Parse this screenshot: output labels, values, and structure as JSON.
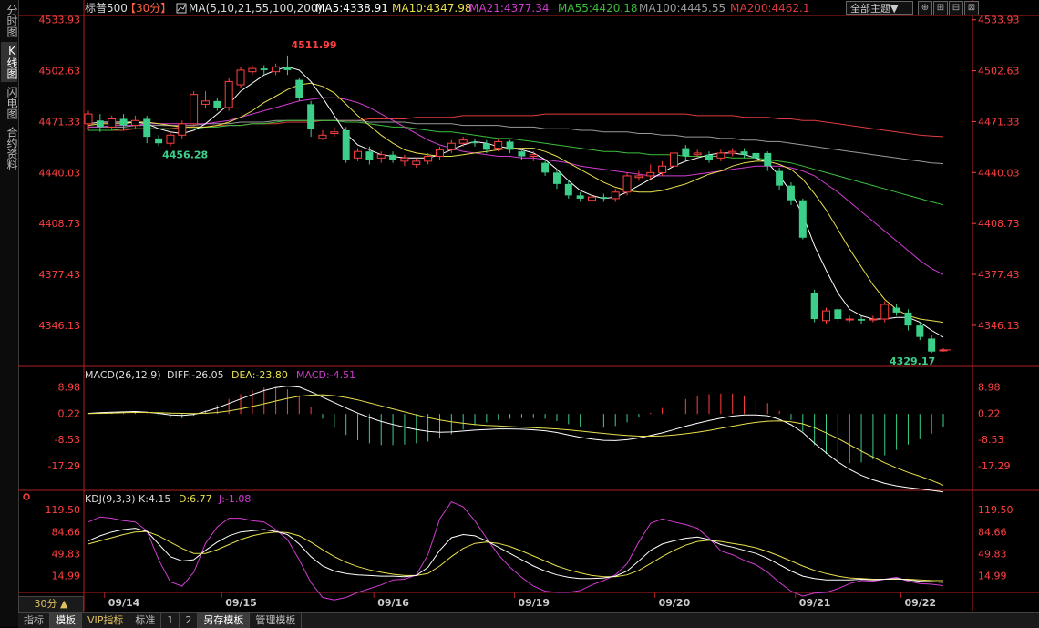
{
  "left_tabs": [
    {
      "label": "分时图",
      "active": false
    },
    {
      "label": "K线图",
      "active": true
    },
    {
      "label": "闪电图",
      "active": false
    },
    {
      "label": "合约资料",
      "active": false
    }
  ],
  "toolbar": {
    "theme_label": "全部主题▼",
    "btn_icons": [
      "⊕",
      "⊞",
      "⊟",
      "⊠"
    ]
  },
  "bottom_tabs": [
    {
      "label": "指标",
      "active": false,
      "vip": false
    },
    {
      "label": "模板",
      "active": true,
      "vip": false
    },
    {
      "label": "VIP指标",
      "active": false,
      "vip": true
    },
    {
      "label": "标准",
      "active": false,
      "vip": false
    },
    {
      "label": "1",
      "active": false,
      "vip": false
    },
    {
      "label": "2",
      "active": false,
      "vip": false
    },
    {
      "label": "另存模板",
      "active": true,
      "vip": false
    },
    {
      "label": "管理模板",
      "active": false,
      "vip": false
    }
  ],
  "period_label": "30分 ▲",
  "colors": {
    "up": "#ff4040",
    "down": "#3ccf8a",
    "ma5": "#ffffff",
    "ma10": "#e8e04c",
    "ma21": "#d23cd2",
    "ma55": "#3cbf3c",
    "ma100": "#9a9a9a",
    "ma200": "#e03c3c",
    "axis": "#ff4040",
    "diff": "#ffffff",
    "dea": "#e8e04c",
    "k": "#ffffff",
    "d": "#e8e04c",
    "j": "#d23cd2"
  },
  "chart_data": {
    "type": "candlestick",
    "symbol": "标普500",
    "period": "【30分】",
    "ma_header": {
      "icon": "ma-icon",
      "title": "MA(5,10,21,55,100,200)",
      "items": [
        {
          "text": "MA5:4338.91",
          "key": "ma5"
        },
        {
          "text": "MA10:4347.98",
          "key": "ma10"
        },
        {
          "text": "MA21:4377.34",
          "key": "ma21"
        },
        {
          "text": "MA55:4420.18",
          "key": "ma55"
        },
        {
          "text": "MA100:4445.55",
          "key": "ma100"
        },
        {
          "text": "MA200:4462.1",
          "key": "ma200"
        }
      ]
    },
    "price_ticks": [
      "4533.93",
      "4502.63",
      "4471.33",
      "4440.03",
      "4408.73",
      "4377.43",
      "4346.13"
    ],
    "price_range": [
      4322,
      4536
    ],
    "x_dates": [
      "09/14",
      "09/15",
      "09/16",
      "09/19",
      "09/20",
      "09/21",
      "09/22"
    ],
    "annotations": [
      {
        "text": "4511.99",
        "value": 4511.99,
        "index": 17,
        "color": "up"
      },
      {
        "text": "4456.28",
        "value": 4456.28,
        "index": 6,
        "color": "down"
      },
      {
        "text": "4329.17",
        "value": 4329.17,
        "index": 72,
        "color": "down"
      }
    ],
    "candles": [
      [
        4470,
        4476,
        4466,
        4478
      ],
      [
        4472,
        4468,
        4465,
        4476
      ],
      [
        4468,
        4473,
        4466,
        4475
      ],
      [
        4473,
        4469,
        4466,
        4476
      ],
      [
        4469,
        4472,
        4467,
        4475
      ],
      [
        4473,
        4462,
        4458,
        4475
      ],
      [
        4461,
        4458,
        4456.28,
        4463
      ],
      [
        4458,
        4463,
        4456,
        4465
      ],
      [
        4463,
        4470,
        4461,
        4472
      ],
      [
        4470,
        4488,
        4468,
        4490
      ],
      [
        4482,
        4484,
        4480,
        4490
      ],
      [
        4484,
        4480,
        4478,
        4486
      ],
      [
        4480,
        4496,
        4478,
        4498
      ],
      [
        4494,
        4503,
        4492,
        4505
      ],
      [
        4502,
        4504,
        4500,
        4506
      ],
      [
        4504,
        4503,
        4500,
        4506
      ],
      [
        4502,
        4505,
        4500,
        4507
      ],
      [
        4505,
        4503,
        4500,
        4511.99
      ],
      [
        4497,
        4486,
        4484,
        4498
      ],
      [
        4482,
        4467,
        4462,
        4484
      ],
      [
        4461,
        4463,
        4460,
        4466
      ],
      [
        4464,
        4465,
        4462,
        4468
      ],
      [
        4466,
        4448,
        4446,
        4468
      ],
      [
        4449,
        4453,
        4447,
        4455
      ],
      [
        4453,
        4448,
        4445,
        4456
      ],
      [
        4449,
        4451,
        4446,
        4453
      ],
      [
        4451,
        4448,
        4446,
        4453
      ],
      [
        4447,
        4449,
        4444,
        4451
      ],
      [
        4445,
        4447,
        4443,
        4449
      ],
      [
        4447,
        4450,
        4445,
        4452
      ],
      [
        4450,
        4454,
        4448,
        4456
      ],
      [
        4454,
        4458,
        4452,
        4460
      ],
      [
        4458,
        4460,
        4456,
        4462
      ],
      [
        4459,
        4458,
        4456,
        4461
      ],
      [
        4458,
        4454,
        4452,
        4460
      ],
      [
        4455,
        4459,
        4453,
        4461
      ],
      [
        4459,
        4454,
        4452,
        4460
      ],
      [
        4453,
        4450,
        4448,
        4455
      ],
      [
        4450,
        4451,
        4447,
        4453
      ],
      [
        4446,
        4440,
        4438,
        4448
      ],
      [
        4440,
        4433,
        4430,
        4442
      ],
      [
        4433,
        4426,
        4424,
        4435
      ],
      [
        4426,
        4424,
        4422,
        4428
      ],
      [
        4423,
        4425,
        4420,
        4427
      ],
      [
        4425,
        4424,
        4422,
        4427
      ],
      [
        4424,
        4428,
        4422,
        4430
      ],
      [
        4428,
        4438,
        4426,
        4440
      ],
      [
        4437,
        4438,
        4435,
        4441
      ],
      [
        4438,
        4440,
        4436,
        4445
      ],
      [
        4440,
        4444,
        4438,
        4447
      ],
      [
        4444,
        4452,
        4442,
        4454
      ],
      [
        4455,
        4450,
        4448,
        4457
      ],
      [
        4451,
        4452,
        4449,
        4454
      ],
      [
        4451,
        4448,
        4446,
        4453
      ],
      [
        4449,
        4452,
        4447,
        4454
      ],
      [
        4452,
        4453,
        4450,
        4455
      ],
      [
        4453,
        4451,
        4449,
        4455
      ],
      [
        4452,
        4449,
        4446,
        4453
      ],
      [
        4452,
        4444,
        4441,
        4453
      ],
      [
        4441,
        4432,
        4429,
        4443
      ],
      [
        4432,
        4423,
        4420,
        4434
      ],
      [
        4423,
        4400,
        4399,
        4424
      ],
      [
        4366,
        4350,
        4348,
        4368
      ],
      [
        4349,
        4355,
        4347,
        4357
      ],
      [
        4356,
        4350,
        4348,
        4357
      ],
      [
        4350,
        4350,
        4348,
        4352
      ],
      [
        4350,
        4349,
        4347,
        4352
      ],
      [
        4350,
        4350,
        4348,
        4352
      ],
      [
        4350,
        4359,
        4348,
        4361
      ],
      [
        4357,
        4354,
        4352,
        4359
      ],
      [
        4354,
        4346,
        4343,
        4356
      ],
      [
        4346,
        4339,
        4337,
        4348
      ],
      [
        4338,
        4330,
        4329.17,
        4340
      ],
      [
        4331,
        4331,
        4330,
        4332
      ]
    ],
    "ma_lines": {
      "ma5": [
        4470,
        4471,
        4471,
        4471,
        4471,
        4470,
        4467,
        4465,
        4464,
        4466,
        4470,
        4476,
        4482,
        4490,
        4495,
        4500,
        4503,
        4505,
        4503,
        4496,
        4486,
        4475,
        4464,
        4457,
        4454,
        4451,
        4450,
        4449,
        4449,
        4449,
        4451,
        4454,
        4457,
        4459,
        4458,
        4456,
        4455,
        4454,
        4452,
        4448,
        4442,
        4435,
        4429,
        4426,
        4424,
        4425,
        4428,
        4432,
        4436,
        4440,
        4444,
        4447,
        4449,
        4451,
        4452,
        4452,
        4451,
        4449,
        4446,
        4438,
        4428,
        4414,
        4395,
        4380,
        4366,
        4356,
        4352,
        4350,
        4350,
        4351,
        4351,
        4348,
        4343,
        4338.91
      ],
      "ma10": [
        4469,
        4470,
        4470,
        4470,
        4471,
        4471,
        4470,
        4469,
        4468,
        4468,
        4468,
        4469,
        4471,
        4474,
        4478,
        4483,
        4487,
        4491,
        4494,
        4495,
        4493,
        4489,
        4482,
        4475,
        4469,
        4463,
        4458,
        4454,
        4452,
        4451,
        4450,
        4450,
        4451,
        4452,
        4453,
        4454,
        4455,
        4455,
        4455,
        4453,
        4450,
        4446,
        4442,
        4438,
        4434,
        4431,
        4429,
        4428,
        4428,
        4429,
        4431,
        4433,
        4436,
        4439,
        4441,
        4444,
        4446,
        4447,
        4447,
        4445,
        4442,
        4436,
        4427,
        4417,
        4405,
        4393,
        4382,
        4371,
        4362,
        4356,
        4352,
        4350,
        4349,
        4347.98
      ],
      "ma21": [
        4468,
        4468,
        4469,
        4469,
        4469,
        4470,
        4470,
        4470,
        4470,
        4470,
        4470,
        4471,
        4472,
        4474,
        4476,
        4478,
        4480,
        4482,
        4484,
        4485,
        4486,
        4486,
        4485,
        4483,
        4480,
        4476,
        4472,
        4468,
        4464,
        4460,
        4457,
        4455,
        4453,
        4452,
        4451,
        4450,
        4450,
        4449,
        4449,
        4448,
        4447,
        4446,
        4444,
        4443,
        4442,
        4441,
        4440,
        4439,
        4438,
        4438,
        4438,
        4438,
        4439,
        4440,
        4441,
        4442,
        4443,
        4444,
        4444,
        4444,
        4443,
        4441,
        4438,
        4433,
        4428,
        4422,
        4416,
        4410,
        4404,
        4398,
        4392,
        4386,
        4381,
        4377.34
      ],
      "ma55": [
        4466,
        4466,
        4466,
        4467,
        4467,
        4467,
        4467,
        4467,
        4467,
        4467,
        4468,
        4468,
        4469,
        4469,
        4470,
        4470,
        4471,
        4472,
        4472,
        4472,
        4472,
        4472,
        4471,
        4471,
        4470,
        4469,
        4468,
        4468,
        4467,
        4466,
        4465,
        4465,
        4464,
        4463,
        4462,
        4461,
        4461,
        4460,
        4459,
        4458,
        4457,
        4456,
        4455,
        4454,
        4453,
        4453,
        4452,
        4452,
        4451,
        4451,
        4451,
        4450,
        4450,
        4450,
        4450,
        4449,
        4449,
        4449,
        4448,
        4447,
        4446,
        4444,
        4442,
        4440,
        4438,
        4436,
        4434,
        4432,
        4430,
        4428,
        4426,
        4424,
        4422,
        4420.18
      ],
      "ma100": [
        4468,
        4468,
        4468,
        4468,
        4469,
        4469,
        4469,
        4469,
        4469,
        4469,
        4470,
        4470,
        4470,
        4471,
        4471,
        4471,
        4472,
        4472,
        4472,
        4472,
        4472,
        4472,
        4472,
        4472,
        4471,
        4471,
        4471,
        4471,
        4470,
        4470,
        4470,
        4470,
        4469,
        4469,
        4469,
        4469,
        4468,
        4468,
        4468,
        4467,
        4467,
        4467,
        4466,
        4466,
        4465,
        4465,
        4465,
        4464,
        4464,
        4463,
        4463,
        4462,
        4462,
        4462,
        4461,
        4461,
        4460,
        4460,
        4459,
        4459,
        4458,
        4457,
        4456,
        4455,
        4454,
        4453,
        4452,
        4451,
        4450,
        4449,
        4448,
        4447,
        4446,
        4445.55
      ],
      "ma200": [
        4466,
        4466,
        4466,
        4466,
        4467,
        4467,
        4467,
        4467,
        4468,
        4468,
        4468,
        4469,
        4469,
        4469,
        4470,
        4470,
        4470,
        4471,
        4471,
        4471,
        4472,
        4472,
        4472,
        4472,
        4473,
        4473,
        4473,
        4473,
        4474,
        4474,
        4474,
        4474,
        4475,
        4475,
        4475,
        4475,
        4475,
        4475,
        4475,
        4476,
        4476,
        4476,
        4476,
        4476,
        4476,
        4476,
        4476,
        4476,
        4476,
        4476,
        4476,
        4476,
        4475,
        4475,
        4475,
        4475,
        4474,
        4474,
        4474,
        4473,
        4473,
        4472,
        4472,
        4471,
        4470,
        4469,
        4468,
        4467,
        4466,
        4465,
        4464,
        4463,
        4462.5,
        4462.1
      ]
    },
    "macd": {
      "header": "MACD(26,12,9)",
      "diff_text": "DIFF:-26.05",
      "dea_text": "DEA:-23.80",
      "macd_text": "MACD:-4.51",
      "ticks": [
        "8.98",
        "0.22",
        "-8.53",
        "-17.29"
      ],
      "range": [
        -25.5,
        11
      ],
      "diff": [
        0.2,
        0.4,
        0.6,
        0.7,
        0.8,
        0.6,
        0.2,
        -0.3,
        -0.5,
        -0.2,
        0.8,
        2.0,
        3.5,
        5.0,
        6.5,
        7.8,
        8.8,
        9.3,
        9.0,
        7.4,
        5.6,
        3.8,
        2.0,
        0.3,
        -1.2,
        -2.5,
        -3.5,
        -4.4,
        -5.2,
        -5.8,
        -6.1,
        -6.0,
        -5.7,
        -5.4,
        -5.2,
        -5.0,
        -5.0,
        -5.1,
        -5.3,
        -5.6,
        -6.2,
        -7.0,
        -7.8,
        -8.4,
        -8.8,
        -8.9,
        -8.6,
        -8.0,
        -7.2,
        -6.3,
        -5.2,
        -4.1,
        -3.1,
        -2.2,
        -1.4,
        -0.7,
        -0.3,
        -0.3,
        -0.6,
        -1.8,
        -3.6,
        -6.2,
        -9.8,
        -13.0,
        -16.0,
        -18.5,
        -20.5,
        -22.0,
        -23.2,
        -24.0,
        -24.6,
        -25.0,
        -25.5,
        -26.05
      ],
      "dea": [
        0.1,
        0.2,
        0.3,
        0.4,
        0.5,
        0.5,
        0.4,
        0.3,
        0.2,
        0.1,
        0.2,
        0.5,
        1.0,
        1.7,
        2.5,
        3.4,
        4.3,
        5.2,
        5.9,
        6.3,
        6.4,
        6.1,
        5.5,
        4.7,
        3.7,
        2.7,
        1.7,
        0.7,
        -0.3,
        -1.2,
        -2.0,
        -2.6,
        -3.1,
        -3.5,
        -3.8,
        -4.0,
        -4.2,
        -4.4,
        -4.6,
        -4.8,
        -5.0,
        -5.3,
        -5.7,
        -6.1,
        -6.5,
        -6.9,
        -7.2,
        -7.4,
        -7.4,
        -7.3,
        -7.0,
        -6.6,
        -6.1,
        -5.5,
        -4.8,
        -4.1,
        -3.4,
        -2.8,
        -2.4,
        -2.3,
        -2.6,
        -3.3,
        -4.6,
        -6.3,
        -8.2,
        -10.3,
        -12.4,
        -14.4,
        -16.3,
        -18.0,
        -19.5,
        -20.8,
        -22.2,
        -23.8
      ]
    },
    "kdj": {
      "header": "KDJ(9,3,3)",
      "k_text": "K:4.15",
      "d_text": "D:6.77",
      "j_text": "J:-1.08",
      "ticks": [
        "119.50",
        "84.66",
        "49.83",
        "14.99"
      ],
      "range": [
        -12,
        130
      ],
      "k": [
        70,
        78,
        84,
        88,
        90,
        85,
        65,
        45,
        38,
        40,
        55,
        68,
        78,
        84,
        86,
        88,
        85,
        80,
        65,
        45,
        30,
        22,
        18,
        16,
        15,
        14,
        14,
        13,
        15,
        28,
        55,
        75,
        80,
        78,
        70,
        60,
        50,
        40,
        30,
        22,
        16,
        12,
        10,
        10,
        11,
        14,
        22,
        38,
        55,
        65,
        70,
        74,
        76,
        72,
        64,
        60,
        55,
        50,
        42,
        32,
        22,
        14,
        10,
        8,
        8,
        8,
        9,
        8,
        9,
        10,
        8,
        6,
        5,
        4.15
      ],
      "d": [
        65,
        70,
        75,
        80,
        84,
        85,
        78,
        68,
        58,
        50,
        50,
        56,
        64,
        72,
        78,
        82,
        84,
        83,
        78,
        68,
        56,
        45,
        36,
        29,
        24,
        20,
        17,
        15,
        15,
        18,
        30,
        45,
        58,
        66,
        68,
        66,
        61,
        54,
        46,
        38,
        30,
        24,
        19,
        15,
        13,
        13,
        16,
        23,
        34,
        45,
        55,
        63,
        69,
        71,
        69,
        66,
        63,
        59,
        53,
        46,
        38,
        30,
        23,
        18,
        14,
        11,
        10,
        9,
        9,
        9,
        9,
        8,
        7,
        6.77
      ],
      "j": [
        100,
        108,
        106,
        102,
        100,
        86,
        40,
        5,
        -2,
        20,
        66,
        92,
        106,
        106,
        102,
        100,
        88,
        72,
        40,
        4,
        -20,
        -24,
        -20,
        -12,
        -6,
        0,
        8,
        9,
        16,
        48,
        105,
        132,
        124,
        102,
        74,
        48,
        28,
        12,
        -2,
        -10,
        -12,
        -12,
        -9,
        0,
        7,
        16,
        34,
        68,
        98,
        105,
        100,
        96,
        90,
        74,
        54,
        48,
        39,
        32,
        20,
        4,
        -10,
        -18,
        -13,
        -12,
        -6,
        2,
        7,
        6,
        9,
        12,
        6,
        2,
        1,
        -1.08
      ],
      "range_note": ""
    }
  }
}
